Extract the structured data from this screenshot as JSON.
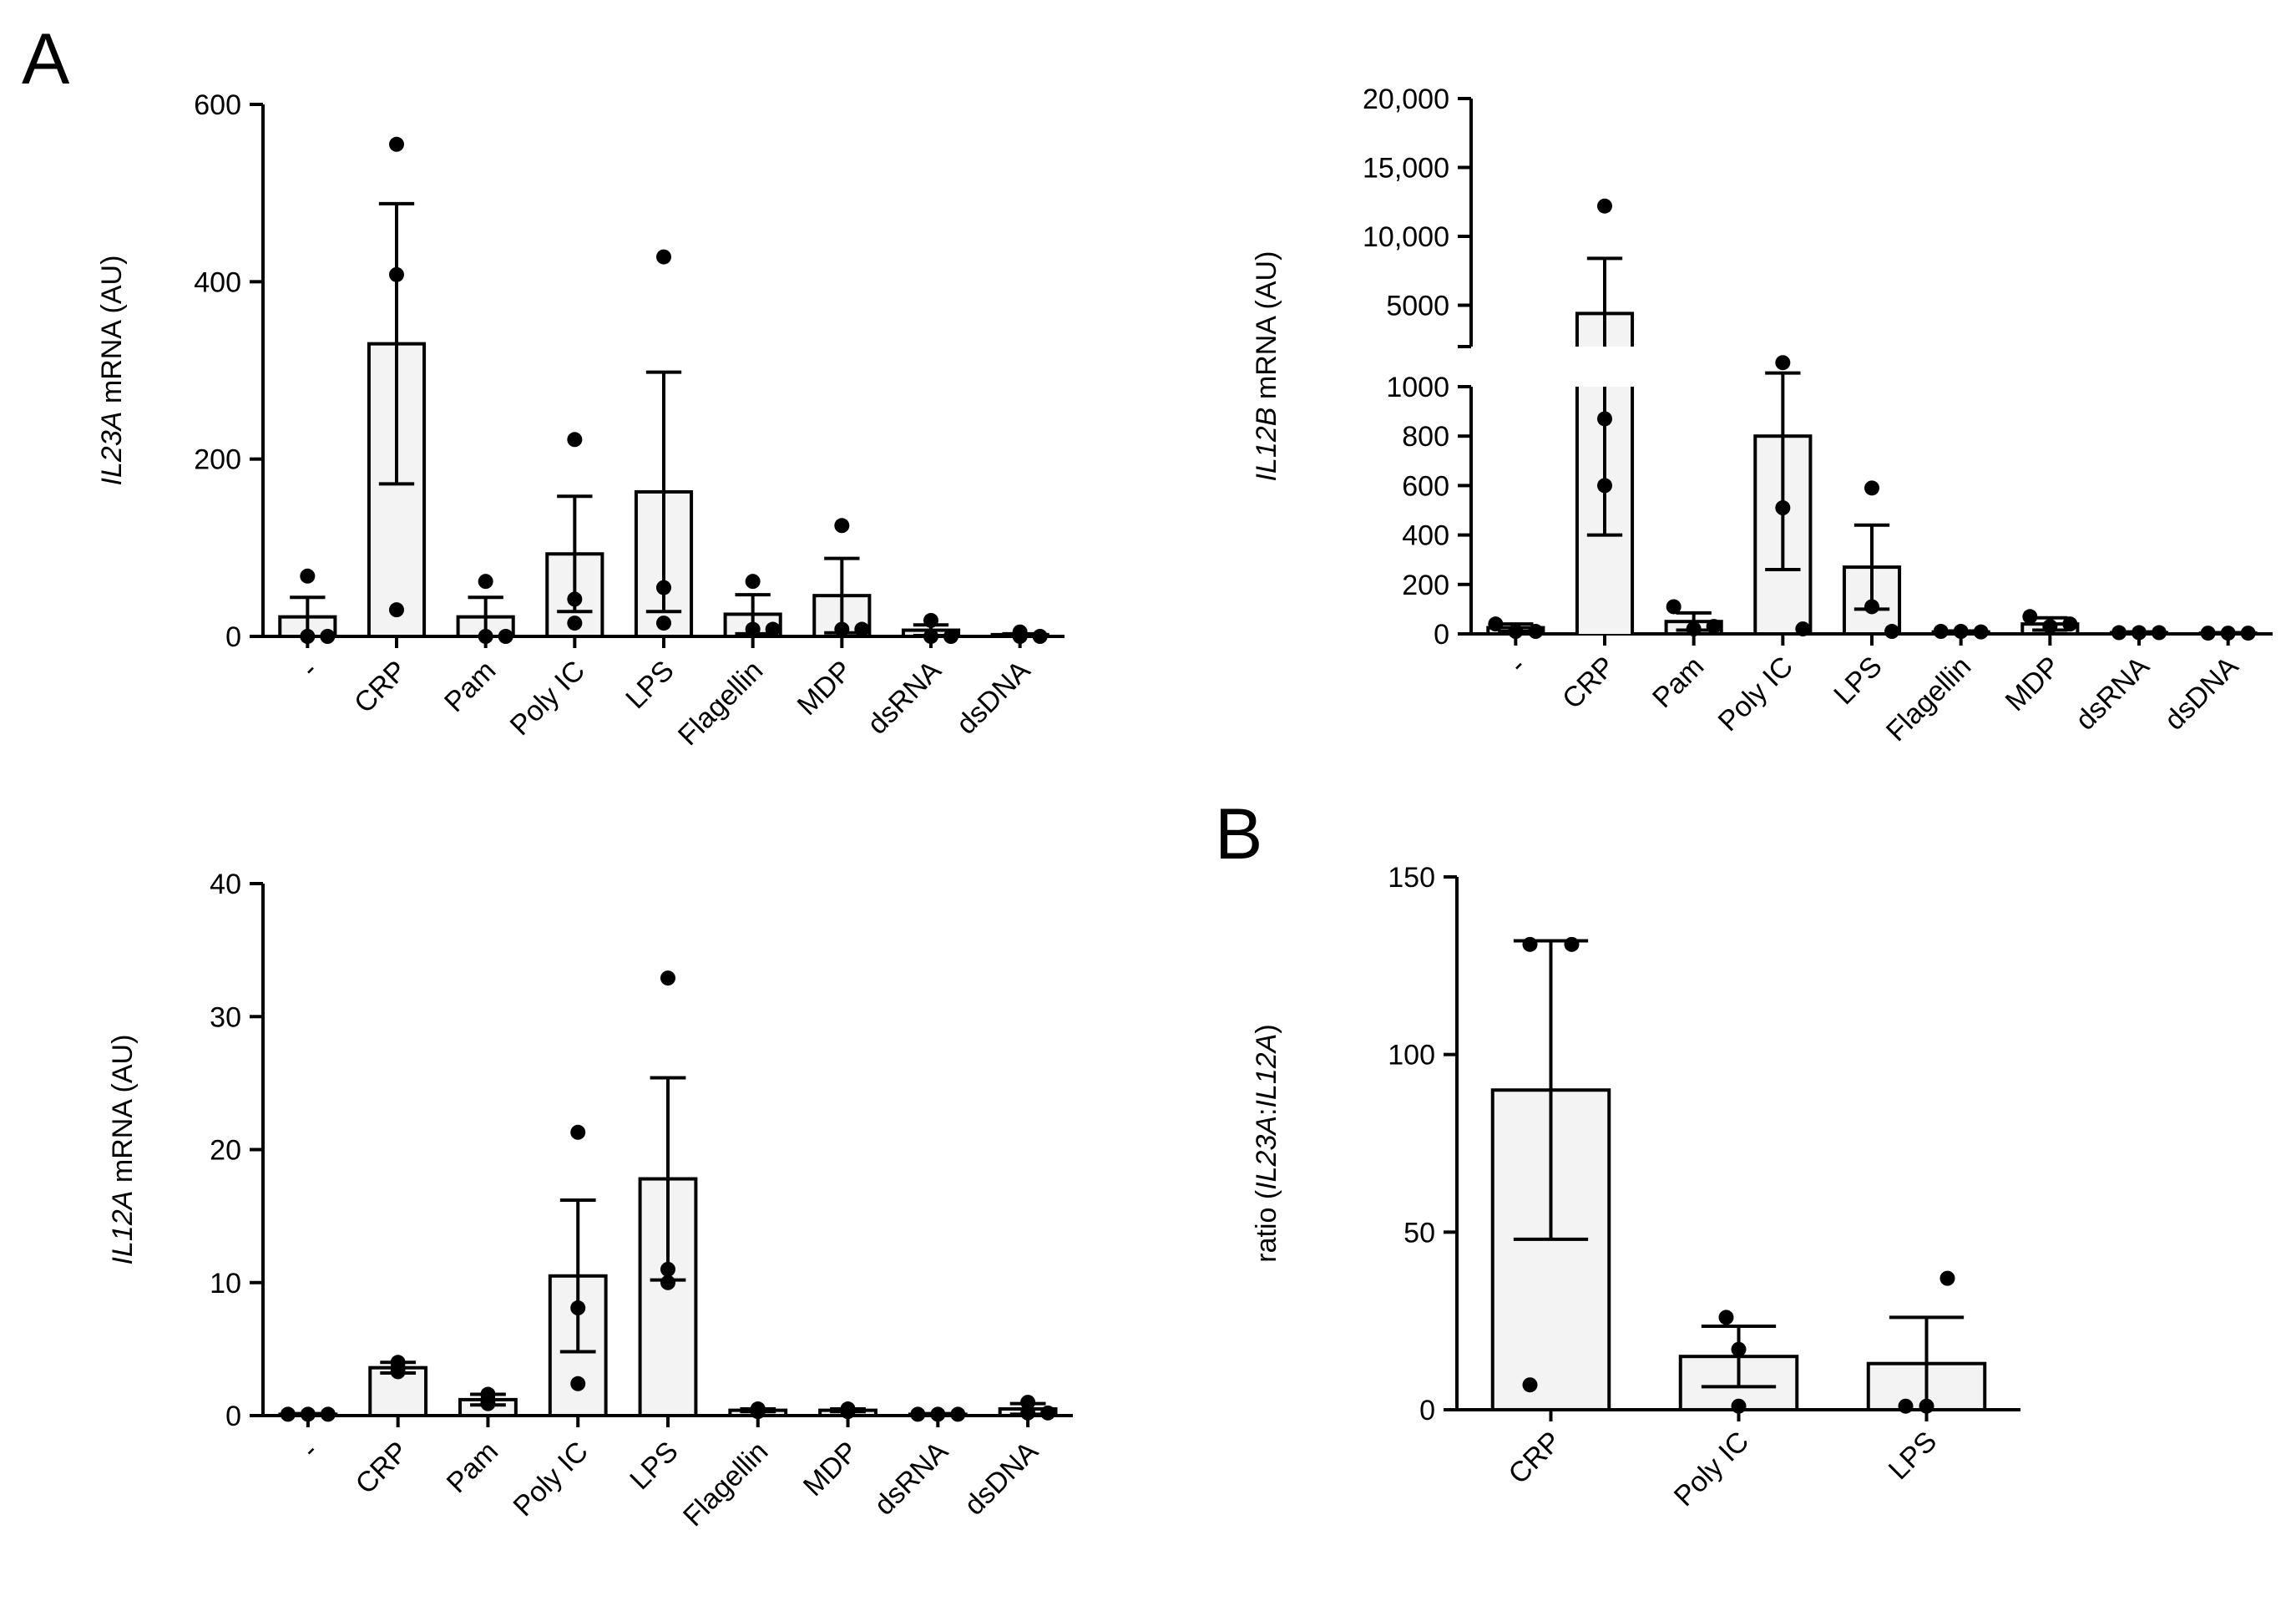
{
  "figure": {
    "panel_a_label": "A",
    "panel_b_label": "B"
  },
  "chart_data": [
    {
      "id": "il23a",
      "type": "bar",
      "panel": "A",
      "title": "",
      "ylabel_gene": "IL23A",
      "ylabel_rest": " mRNA (AU)",
      "categories": [
        "-",
        "CRP",
        "Pam",
        "Poly IC",
        "LPS",
        "Flagellin",
        "MDP",
        "dsRNA",
        "dsDNA"
      ],
      "means": [
        22,
        330,
        22,
        93,
        163,
        25,
        46,
        7,
        2
      ],
      "sem": [
        22,
        158,
        22,
        65,
        135,
        22,
        42,
        6,
        1
      ],
      "points": [
        [
          68,
          0,
          0
        ],
        [
          555,
          408,
          30
        ],
        [
          62,
          0,
          0
        ],
        [
          222,
          42,
          15
        ],
        [
          428,
          55,
          15
        ],
        [
          62,
          8,
          8
        ],
        [
          125,
          8,
          8
        ],
        [
          18,
          0,
          0
        ],
        [
          5,
          0,
          0
        ]
      ],
      "ylim": [
        0,
        600
      ],
      "yticks": [
        0,
        200,
        400,
        600
      ],
      "ytick_labels": [
        "0",
        "200",
        "400",
        "600"
      ]
    },
    {
      "id": "il12b",
      "type": "bar",
      "panel": "A",
      "title": "",
      "ylabel_gene": "IL12B",
      "ylabel_rest": " mRNA (AU)",
      "axis_break": {
        "lower": [
          0,
          1000
        ],
        "upper": [
          2000,
          20000
        ]
      },
      "categories": [
        "-",
        "CRP",
        "Pam",
        "Poly IC",
        "LPS",
        "Flagellin",
        "MDP",
        "dsRNA",
        "dsDNA"
      ],
      "means": [
        25,
        4400,
        50,
        800,
        270,
        8,
        40,
        5,
        3
      ],
      "sem": [
        15,
        4000,
        35,
        540,
        170,
        4,
        25,
        3,
        2
      ],
      "points": [
        [
          40,
          10,
          10
        ],
        [
          12200,
          870,
          600
        ],
        [
          110,
          20,
          30
        ],
        [
          1600,
          510,
          20
        ],
        [
          590,
          110,
          10
        ],
        [
          10,
          10,
          8
        ],
        [
          70,
          30,
          40
        ],
        [
          5,
          5,
          5
        ],
        [
          3,
          3,
          3
        ]
      ],
      "yticks_lower": [
        0,
        200,
        400,
        600,
        800,
        1000
      ],
      "ytick_labels_lower": [
        "0",
        "200",
        "400",
        "600",
        "800",
        "1000"
      ],
      "yticks_upper": [
        5000,
        10000,
        15000,
        20000
      ],
      "ytick_labels_upper": [
        "5000",
        "10,000",
        "15,000",
        "20,000"
      ]
    },
    {
      "id": "il12a",
      "type": "bar",
      "panel": "A",
      "title": "",
      "ylabel_gene": "IL12A",
      "ylabel_rest": " mRNA (AU)",
      "categories": [
        "-",
        "CRP",
        "Pam",
        "Poly IC",
        "LPS",
        "Flagellin",
        "MDP",
        "dsRNA",
        "dsDNA"
      ],
      "means": [
        0.1,
        3.6,
        1.2,
        10.5,
        17.8,
        0.4,
        0.4,
        0.1,
        0.5
      ],
      "sem": [
        0.05,
        0.4,
        0.4,
        5.7,
        7.6,
        0.1,
        0.1,
        0.05,
        0.4
      ],
      "points": [
        [
          0.1,
          0.1,
          0.1
        ],
        [
          3.6,
          4.0,
          3.3
        ],
        [
          1.6,
          0.9,
          1.2
        ],
        [
          21.3,
          8.1,
          2.4
        ],
        [
          32.9,
          11.0,
          10.0
        ],
        [
          0.4,
          0.3,
          0.5
        ],
        [
          0.4,
          0.3,
          0.5
        ],
        [
          0.1,
          0.1,
          0.1
        ],
        [
          1.0,
          0.2,
          0.2
        ]
      ],
      "ylim": [
        0,
        40
      ],
      "yticks": [
        0,
        10,
        20,
        30,
        40
      ],
      "ytick_labels": [
        "0",
        "10",
        "20",
        "30",
        "40"
      ]
    },
    {
      "id": "ratio",
      "type": "bar",
      "panel": "B",
      "title": "",
      "ylabel_prefix": "ratio (",
      "ylabel_gene1": "IL23A",
      "ylabel_sep": ":",
      "ylabel_gene2": "IL12A",
      "ylabel_suffix": ")",
      "categories": [
        "CRP",
        "Poly IC",
        "LPS"
      ],
      "means": [
        90,
        15,
        13
      ],
      "sem": [
        42,
        8.5,
        13
      ],
      "points": [
        [
          131,
          131,
          7
        ],
        [
          26,
          17,
          1
        ],
        [
          37,
          1,
          1
        ]
      ],
      "ylim": [
        0,
        150
      ],
      "yticks": [
        0,
        50,
        100,
        150
      ],
      "ytick_labels": [
        "0",
        "50",
        "100",
        "150"
      ]
    }
  ]
}
